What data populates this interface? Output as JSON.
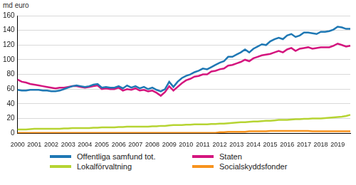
{
  "chart_data": {
    "type": "line",
    "ylabel": "md euro",
    "categories": [
      "2000",
      null,
      null,
      null,
      "2001",
      null,
      null,
      null,
      "2002",
      null,
      null,
      null,
      "2003",
      null,
      null,
      null,
      "2004",
      null,
      null,
      null,
      "2005",
      null,
      null,
      null,
      "2006",
      null,
      null,
      null,
      "2007",
      null,
      null,
      null,
      "2008",
      null,
      null,
      null,
      "2009",
      null,
      null,
      null,
      "2010",
      null,
      null,
      null,
      "2011",
      null,
      null,
      null,
      "2012",
      null,
      null,
      null,
      "2013",
      null,
      null,
      null,
      "2014",
      null,
      null,
      null,
      "2015",
      null,
      null,
      null,
      "2016",
      null,
      null,
      null,
      "2017",
      null,
      null,
      null,
      "2018",
      null,
      null,
      null,
      "2019",
      null,
      null,
      null
    ],
    "series": [
      {
        "name": "Offentliga samfund tot.",
        "color": "#1f78b4",
        "values": [
          59,
          58,
          58,
          59,
          59,
          59,
          58,
          58,
          57,
          57,
          58,
          60,
          62,
          64,
          65,
          64,
          63,
          64,
          66,
          67,
          62,
          63,
          62,
          62,
          64,
          61,
          65,
          62,
          64,
          61,
          63,
          60,
          62,
          59,
          57,
          60,
          70,
          63,
          70,
          75,
          78,
          80,
          83,
          85,
          88,
          87,
          90,
          93,
          96,
          98,
          104,
          104,
          107,
          110,
          114,
          110,
          115,
          118,
          121,
          120,
          125,
          128,
          130,
          128,
          133,
          135,
          131,
          133,
          137,
          137,
          136,
          135,
          138,
          138,
          139,
          141,
          145,
          144,
          142,
          142
        ]
      },
      {
        "name": "Staten",
        "color": "#d4157e",
        "values": [
          73,
          70,
          69,
          67,
          66,
          65,
          64,
          63,
          62,
          61,
          62,
          62,
          63,
          64,
          64,
          63,
          62,
          63,
          64,
          65,
          60,
          61,
          60,
          60,
          62,
          58,
          60,
          59,
          61,
          58,
          59,
          57,
          58,
          55,
          51,
          56,
          64,
          58,
          63,
          68,
          72,
          74,
          77,
          78,
          80,
          80,
          84,
          85,
          87,
          88,
          92,
          93,
          95,
          97,
          100,
          98,
          102,
          104,
          106,
          107,
          108,
          110,
          112,
          110,
          114,
          116,
          112,
          115,
          116,
          117,
          115,
          116,
          117,
          117,
          117,
          119,
          122,
          120,
          118,
          119
        ]
      },
      {
        "name": "Lokalförvaltning",
        "color": "#b6d433",
        "values": [
          5,
          5,
          5,
          5.5,
          6,
          6,
          6,
          6,
          6,
          6,
          6,
          6.5,
          6.5,
          7,
          7,
          7,
          7,
          7,
          7.5,
          7.5,
          8,
          8,
          8,
          8,
          8.5,
          8.5,
          9,
          9,
          9,
          9,
          9,
          9,
          9.5,
          9.5,
          10,
          10,
          10.5,
          11,
          11,
          11,
          11.5,
          11.5,
          12,
          12,
          12,
          12,
          12.5,
          12.5,
          13,
          13,
          13.5,
          14,
          14.5,
          15,
          15,
          15.5,
          16,
          16,
          16.5,
          17,
          17,
          17.5,
          18,
          18,
          18,
          18.5,
          19,
          19,
          19.5,
          19.5,
          20,
          20,
          20,
          20.5,
          21,
          21.5,
          22,
          22.5,
          23.5,
          25
        ]
      },
      {
        "name": "Socialskyddsfonder",
        "color": "#f7931e",
        "values": [
          0.5,
          0.5,
          0.5,
          0.5,
          0.5,
          0.5,
          0.5,
          0.5,
          0.5,
          0.5,
          0.5,
          0.5,
          0.5,
          0.5,
          0.5,
          0.5,
          0.5,
          0.5,
          0.5,
          0.5,
          0.5,
          0.5,
          0.5,
          0.5,
          0.5,
          0.5,
          0.5,
          0.5,
          0.5,
          0.5,
          0.5,
          0.5,
          0.5,
          0.5,
          0.5,
          0.5,
          0.5,
          0.5,
          0.5,
          0.5,
          0.5,
          0.5,
          0.5,
          0.5,
          0.5,
          0.5,
          0.5,
          0.5,
          1.5,
          1.5,
          2,
          2,
          2,
          2,
          2,
          2.5,
          2.5,
          2.5,
          2.5,
          2.5,
          3,
          3,
          3,
          3,
          3,
          3,
          3,
          3,
          3,
          3,
          2.5,
          2.5,
          2.5,
          2.5,
          2.5,
          2.5,
          2.5,
          2.5,
          2.5,
          2.5
        ]
      }
    ],
    "ylim": [
      0,
      160
    ],
    "yticks": [
      0,
      20,
      40,
      60,
      80,
      100,
      120,
      140,
      160
    ],
    "grid": true,
    "legend": "bottom"
  }
}
